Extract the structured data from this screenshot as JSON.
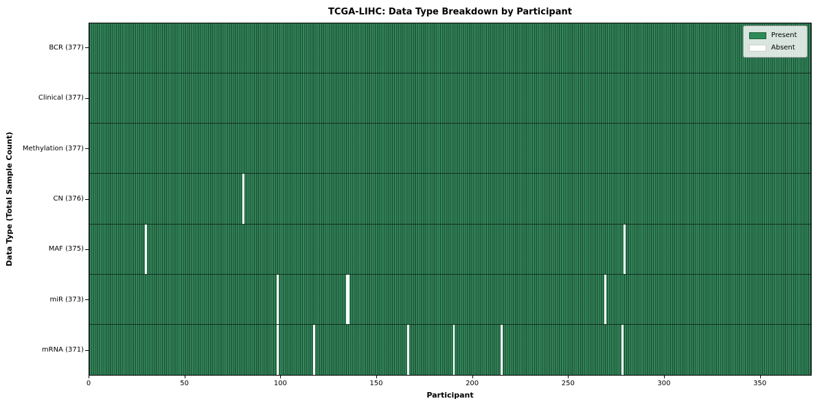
{
  "figure": {
    "title": "TCGA-LIHC: Data Type Breakdown by Participant",
    "xlabel": "Participant",
    "ylabel": "Data Type (Total Sample Count)"
  },
  "legend": {
    "items": [
      {
        "label": "Present",
        "color": "#2e8b57"
      },
      {
        "label": "Absent",
        "color": "#ffffff"
      }
    ]
  },
  "chart_data": {
    "type": "heatmap",
    "title": "TCGA-LIHC: Data Type Breakdown by Participant",
    "xlabel": "Participant",
    "ylabel": "Data Type (Total Sample Count)",
    "legend_entries": [
      "Present",
      "Absent"
    ],
    "legend_position": "upper right",
    "grid": false,
    "n_participants": 377,
    "xlim": [
      0,
      377
    ],
    "x_ticks": [
      0,
      50,
      100,
      150,
      200,
      250,
      300,
      350
    ],
    "rows": [
      {
        "name": "BCR",
        "label": "BCR (377)",
        "total": 377,
        "absent_participants": []
      },
      {
        "name": "Clinical",
        "label": "Clinical (377)",
        "total": 377,
        "absent_participants": []
      },
      {
        "name": "Methylation",
        "label": "Methylation (377)",
        "total": 377,
        "absent_participants": []
      },
      {
        "name": "CN",
        "label": "CN (376)",
        "total": 376,
        "absent_participants": [
          80
        ]
      },
      {
        "name": "MAF",
        "label": "MAF (375)",
        "total": 375,
        "absent_participants": [
          29,
          279
        ]
      },
      {
        "name": "miR",
        "label": "miR (373)",
        "total": 373,
        "absent_participants": [
          98,
          134,
          135,
          269
        ]
      },
      {
        "name": "mRNA",
        "label": "mRNA (371)",
        "total": 371,
        "absent_participants": [
          98,
          117,
          166,
          190,
          215,
          278
        ]
      }
    ],
    "colors": {
      "present": "#2e8b57",
      "absent": "#ffffff",
      "bar_edge": "rgba(0,0,0,0.55)",
      "row_separator": "rgba(0,0,0,0.60)"
    }
  }
}
